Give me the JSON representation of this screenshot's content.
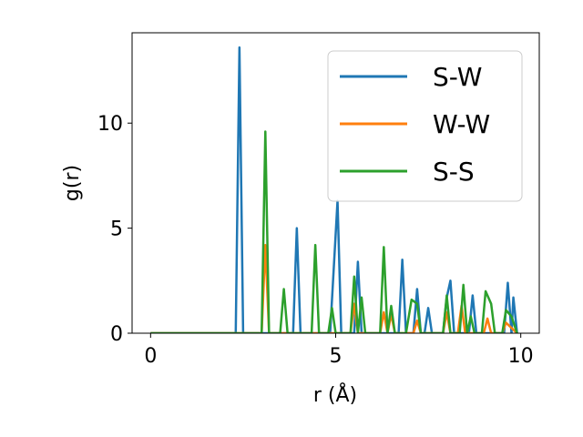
{
  "chart_data": {
    "type": "line",
    "title": "",
    "xlabel": "r (Å)",
    "ylabel": "g(r)",
    "xlim": [
      -0.5,
      10.5
    ],
    "ylim": [
      0,
      14.3
    ],
    "x_ticks": [
      0,
      5,
      10
    ],
    "x_tick_labels": [
      "0",
      "5",
      "10"
    ],
    "y_ticks": [
      0,
      5,
      10
    ],
    "y_tick_labels": [
      "0",
      "5",
      "10"
    ],
    "grid": false,
    "legend_position": "top-right",
    "series": [
      {
        "name": "S-W",
        "color": "#1f77b4",
        "points": [
          [
            0,
            0
          ],
          [
            2.3,
            0
          ],
          [
            2.4,
            13.6
          ],
          [
            2.5,
            0
          ],
          [
            3.85,
            0
          ],
          [
            3.95,
            5.0
          ],
          [
            4.05,
            0
          ],
          [
            4.85,
            0
          ],
          [
            5.05,
            6.3
          ],
          [
            5.15,
            0
          ],
          [
            5.5,
            0
          ],
          [
            5.6,
            3.4
          ],
          [
            5.7,
            0
          ],
          [
            6.7,
            0
          ],
          [
            6.8,
            3.5
          ],
          [
            6.9,
            0
          ],
          [
            7.1,
            0
          ],
          [
            7.2,
            2.1
          ],
          [
            7.3,
            0
          ],
          [
            7.4,
            0
          ],
          [
            7.5,
            1.2
          ],
          [
            7.6,
            0
          ],
          [
            7.9,
            0
          ],
          [
            8.0,
            1.7
          ],
          [
            8.1,
            2.5
          ],
          [
            8.2,
            0
          ],
          [
            8.6,
            0
          ],
          [
            8.7,
            1.8
          ],
          [
            8.8,
            0
          ],
          [
            9.55,
            0
          ],
          [
            9.65,
            2.4
          ],
          [
            9.75,
            0
          ],
          [
            9.8,
            1.7
          ],
          [
            9.9,
            0
          ]
        ]
      },
      {
        "name": "W-W",
        "color": "#ff7f0e",
        "points": [
          [
            0,
            0
          ],
          [
            3.0,
            0
          ],
          [
            3.1,
            4.2
          ],
          [
            3.2,
            0
          ],
          [
            5.4,
            0
          ],
          [
            5.5,
            1.4
          ],
          [
            5.6,
            0
          ],
          [
            6.2,
            0
          ],
          [
            6.3,
            1.0
          ],
          [
            6.4,
            0
          ],
          [
            6.5,
            0.9
          ],
          [
            6.6,
            0
          ],
          [
            7.1,
            0
          ],
          [
            7.2,
            0.6
          ],
          [
            7.3,
            0
          ],
          [
            7.9,
            0
          ],
          [
            8.0,
            1.0
          ],
          [
            8.1,
            0
          ],
          [
            8.3,
            0
          ],
          [
            8.4,
            1.3
          ],
          [
            8.5,
            0
          ],
          [
            9.0,
            0
          ],
          [
            9.1,
            0.7
          ],
          [
            9.2,
            0
          ],
          [
            9.5,
            0
          ],
          [
            9.6,
            0.5
          ],
          [
            9.9,
            0
          ]
        ]
      },
      {
        "name": "S-S",
        "color": "#2ca02c",
        "points": [
          [
            0,
            0
          ],
          [
            3.0,
            0
          ],
          [
            3.1,
            9.6
          ],
          [
            3.2,
            0
          ],
          [
            3.5,
            0
          ],
          [
            3.6,
            2.1
          ],
          [
            3.7,
            0
          ],
          [
            4.35,
            0
          ],
          [
            4.45,
            4.2
          ],
          [
            4.55,
            0
          ],
          [
            4.8,
            0
          ],
          [
            4.9,
            1.2
          ],
          [
            5.0,
            0
          ],
          [
            5.4,
            0
          ],
          [
            5.5,
            2.7
          ],
          [
            5.6,
            0
          ],
          [
            5.7,
            1.7
          ],
          [
            5.8,
            0
          ],
          [
            6.2,
            0
          ],
          [
            6.3,
            4.1
          ],
          [
            6.4,
            0
          ],
          [
            6.5,
            1.3
          ],
          [
            6.6,
            0
          ],
          [
            6.9,
            0
          ],
          [
            7.05,
            1.6
          ],
          [
            7.2,
            1.4
          ],
          [
            7.3,
            0
          ],
          [
            7.9,
            0
          ],
          [
            8.0,
            1.8
          ],
          [
            8.1,
            0
          ],
          [
            8.35,
            0
          ],
          [
            8.45,
            2.3
          ],
          [
            8.55,
            0
          ],
          [
            8.65,
            0.8
          ],
          [
            8.75,
            0
          ],
          [
            8.95,
            0
          ],
          [
            9.05,
            2.0
          ],
          [
            9.2,
            1.4
          ],
          [
            9.3,
            0
          ],
          [
            9.5,
            0
          ],
          [
            9.6,
            1.1
          ],
          [
            9.75,
            0.8
          ],
          [
            9.9,
            0
          ]
        ]
      }
    ]
  }
}
